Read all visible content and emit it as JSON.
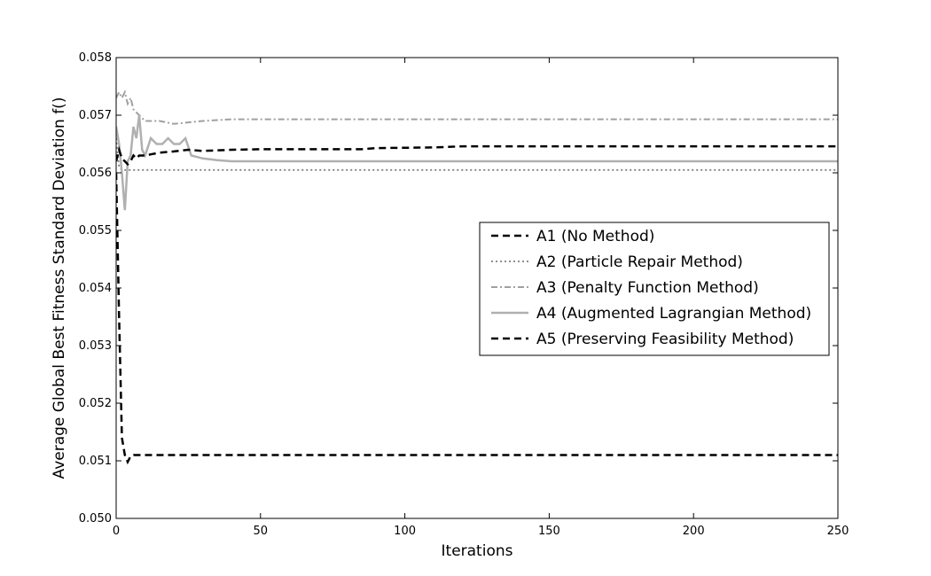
{
  "chart_data": {
    "type": "line",
    "title": "",
    "xlabel": "Iterations",
    "ylabel": "Average Global Best Fitness Standard Deviation f()",
    "xlim": [
      0,
      250
    ],
    "ylim": [
      0.05,
      0.058
    ],
    "xticks": [
      0,
      50,
      100,
      150,
      200,
      250
    ],
    "xtick_labels": [
      "0",
      "50",
      "100",
      "150",
      "200",
      "250"
    ],
    "yticks": [
      0.05,
      0.051,
      0.052,
      0.053,
      0.054,
      0.055,
      0.056,
      0.057,
      0.058
    ],
    "ytick_labels": [
      "0.050",
      "0.051",
      "0.052",
      "0.053",
      "0.054",
      "0.055",
      "0.056",
      "0.057",
      "0.058"
    ],
    "grid": false,
    "legend_position": "center-right",
    "series": [
      {
        "name": "A1 (No Method)",
        "color": "#000000",
        "style": "dashed",
        "x": [
          0,
          1,
          2,
          3,
          4,
          5,
          6,
          250
        ],
        "y": [
          0.056,
          0.0535,
          0.0514,
          0.0511,
          0.05098,
          0.05108,
          0.0511,
          0.0511
        ]
      },
      {
        "name": "A2 (Particle Repair Method)",
        "color": "#808080",
        "style": "dotted",
        "x": [
          0,
          1,
          2,
          3,
          5,
          250
        ],
        "y": [
          0.0566,
          0.0561,
          0.05605,
          0.05605,
          0.05605,
          0.05605
        ]
      },
      {
        "name": "A3 (Penalty Function Method)",
        "color": "#a0a0a0",
        "style": "dashdot",
        "x": [
          0,
          1,
          2,
          3,
          4,
          5,
          6,
          8,
          10,
          15,
          20,
          30,
          40,
          60,
          80,
          250
        ],
        "y": [
          0.0573,
          0.0574,
          0.0573,
          0.0574,
          0.0572,
          0.0573,
          0.0571,
          0.057,
          0.0569,
          0.0569,
          0.05685,
          0.0569,
          0.05693,
          0.05693,
          0.05693,
          0.05693
        ]
      },
      {
        "name": "A4 (Augmented Lagrangian Method)",
        "color": "#b0b0b0",
        "style": "solid",
        "x": [
          0,
          1,
          2,
          3,
          4,
          5,
          6,
          7,
          8,
          9,
          10,
          12,
          14,
          16,
          18,
          20,
          22,
          24,
          26,
          30,
          35,
          40,
          50,
          250
        ],
        "y": [
          0.0568,
          0.0565,
          0.056,
          0.05535,
          0.0562,
          0.0563,
          0.0568,
          0.0566,
          0.057,
          0.0564,
          0.0563,
          0.0566,
          0.0565,
          0.0565,
          0.0566,
          0.0565,
          0.0565,
          0.0566,
          0.0563,
          0.05625,
          0.05622,
          0.0562,
          0.0562,
          0.0562
        ]
      },
      {
        "name": "A5 (Preserving Feasibility Method)",
        "color": "#000000",
        "style": "dashed",
        "x": [
          0,
          1,
          2,
          3,
          4,
          5,
          6,
          7,
          8,
          10,
          12,
          15,
          20,
          25,
          30,
          40,
          50,
          60,
          70,
          80,
          85,
          90,
          110,
          120,
          250
        ],
        "y": [
          0.0562,
          0.0564,
          0.05625,
          0.0562,
          0.05615,
          0.0562,
          0.0563,
          0.05625,
          0.0563,
          0.0563,
          0.05632,
          0.05635,
          0.05637,
          0.0564,
          0.05638,
          0.0564,
          0.05641,
          0.05641,
          0.05641,
          0.05641,
          0.05641,
          0.05643,
          0.05644,
          0.05646,
          0.05646
        ]
      }
    ]
  }
}
